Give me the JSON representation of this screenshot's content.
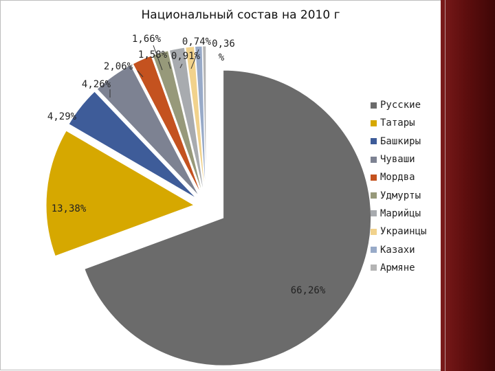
{
  "chart_data": {
    "type": "pie",
    "title": "Национальный состав на 2010 г",
    "categories": [
      "Русские",
      "Татары",
      "Башкиры",
      "Чуваши",
      "Мордва",
      "Удмурты",
      "Марийцы",
      "Украинцы",
      "Казахи",
      "Армяне"
    ],
    "values": [
      66.26,
      13.38,
      4.29,
      4.26,
      2.06,
      1.66,
      1.58,
      0.91,
      0.74,
      0.36
    ],
    "value_labels": [
      "66,26%",
      "13,38%",
      "4,29%",
      "4,26%",
      "2,06%",
      "1,66%",
      "1,58%",
      "0,91%",
      "0,74%",
      "0,36 %"
    ],
    "colors": [
      "#6b6b6b",
      "#d6a800",
      "#3e5c99",
      "#7d8292",
      "#c4521f",
      "#97997a",
      "#a8abaf",
      "#f1d28c",
      "#98aac8",
      "#b4b4b4"
    ],
    "exploded": true,
    "legend_position": "right"
  }
}
